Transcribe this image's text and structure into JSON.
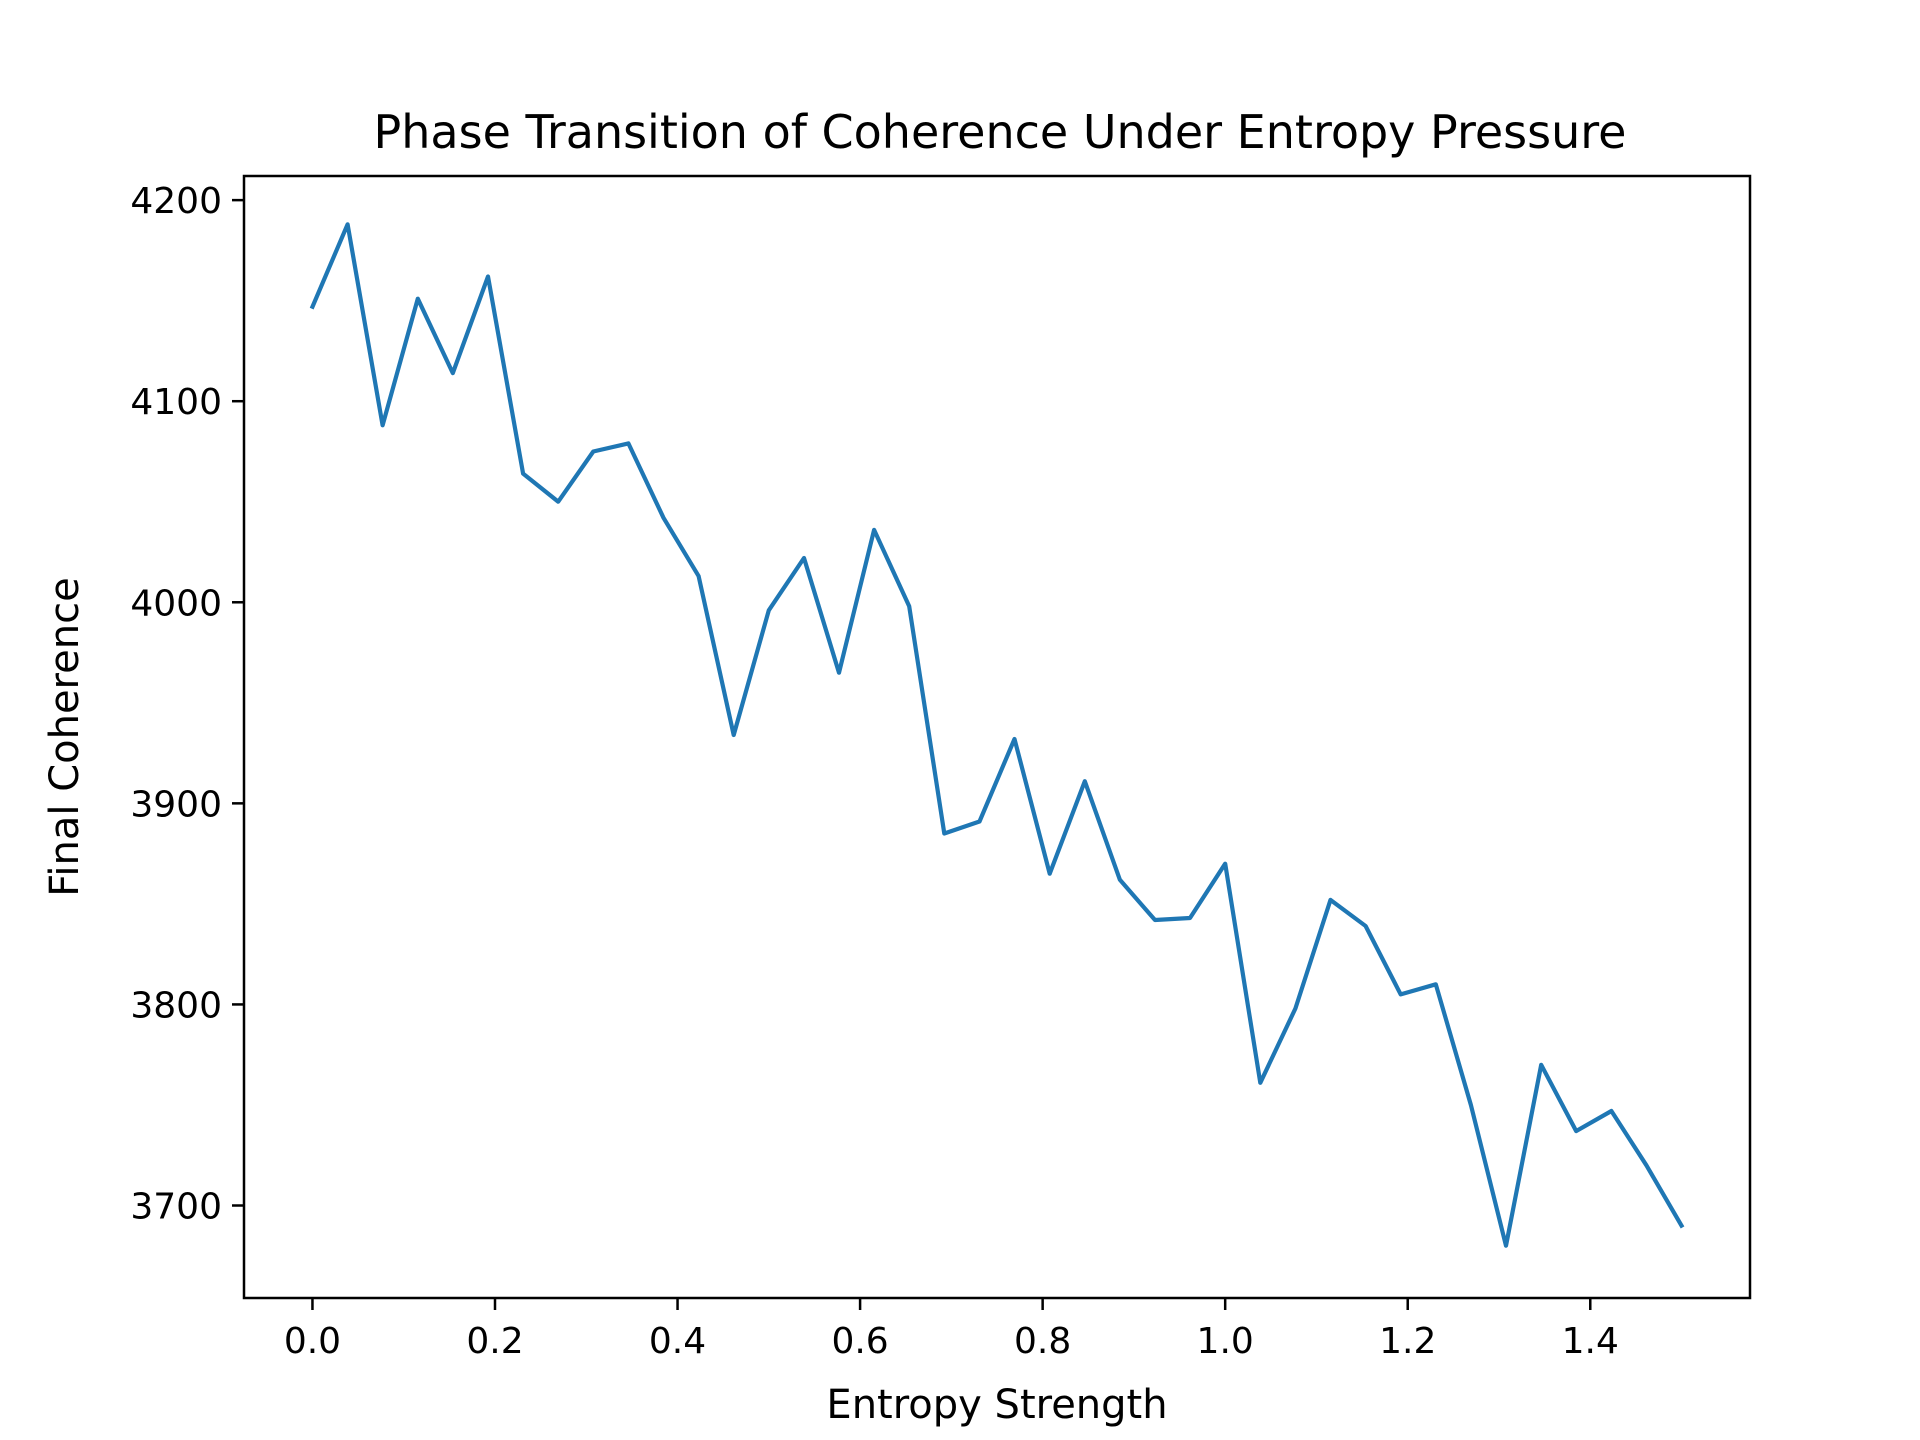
{
  "chart_data": {
    "type": "line",
    "title": "Phase Transition of Coherence Under Entropy Pressure",
    "xlabel": "Entropy Strength",
    "ylabel": "Final Coherence",
    "xlim": [
      -0.075,
      1.575
    ],
    "ylim": [
      3654,
      4212
    ],
    "xticks": [
      0.0,
      0.2,
      0.4,
      0.6,
      0.8,
      1.0,
      1.2,
      1.4
    ],
    "xtick_labels": [
      "0.0",
      "0.2",
      "0.4",
      "0.6",
      "0.8",
      "1.0",
      "1.2",
      "1.4"
    ],
    "yticks": [
      3700,
      3800,
      3900,
      4000,
      4100,
      4200
    ],
    "ytick_labels": [
      "3700",
      "3800",
      "3900",
      "4000",
      "4100",
      "4200"
    ],
    "grid": false,
    "series": [
      {
        "color": "#1f77b4",
        "x": [
          0.0,
          0.0385,
          0.0769,
          0.1154,
          0.1538,
          0.1923,
          0.2308,
          0.2692,
          0.3077,
          0.3462,
          0.3846,
          0.4231,
          0.4615,
          0.5,
          0.5385,
          0.5769,
          0.6154,
          0.6538,
          0.6923,
          0.7308,
          0.7692,
          0.8077,
          0.8462,
          0.8846,
          0.9231,
          0.9615,
          1.0,
          1.0385,
          1.0769,
          1.1154,
          1.1538,
          1.1923,
          1.2308,
          1.2692,
          1.3077,
          1.3462,
          1.3846,
          1.4231,
          1.4615,
          1.5
        ],
        "y": [
          4147,
          4188,
          4088,
          4151,
          4114,
          4162,
          4064,
          4050,
          4075,
          4079,
          4042,
          4013,
          3934,
          3996,
          4022,
          3965,
          4036,
          3998,
          3885,
          3891,
          3932,
          3865,
          3911,
          3862,
          3842,
          3843,
          3870,
          3761,
          3798,
          3852,
          3839,
          3805,
          3810,
          3750,
          3680,
          3770,
          3737,
          3747,
          3720,
          3690
        ]
      }
    ]
  }
}
